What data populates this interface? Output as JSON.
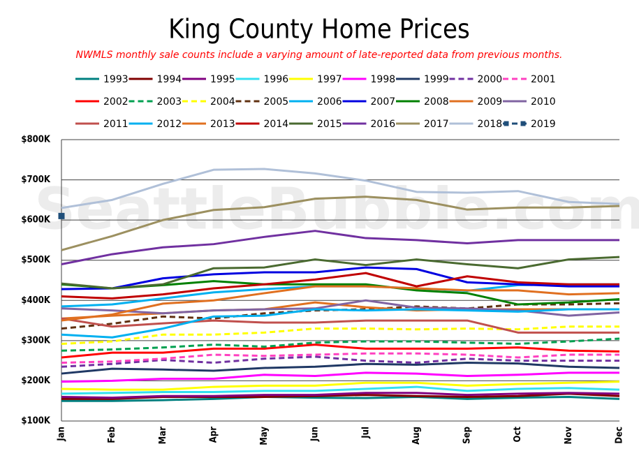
{
  "chart_data": {
    "type": "line",
    "title": "King County Home Prices",
    "subtitle": "NWMLS monthly sale counts include a varying amount of late-reported  data from previous months.",
    "watermark": "SeattleBubble.com",
    "categories": [
      "Jan",
      "Feb",
      "Mar",
      "Apr",
      "May",
      "Jun",
      "Jul",
      "Aug",
      "Sep",
      "Oct",
      "Nov",
      "Dec"
    ],
    "ylim": [
      100000,
      800000
    ],
    "yticks": [
      {
        "value": 100000,
        "label": "$100K"
      },
      {
        "value": 200000,
        "label": "$200K"
      },
      {
        "value": 300000,
        "label": "$300K"
      },
      {
        "value": 400000,
        "label": "$400K"
      },
      {
        "value": 500000,
        "label": "$500K"
      },
      {
        "value": 600000,
        "label": "$600K"
      },
      {
        "value": 700000,
        "label": "$700K"
      },
      {
        "value": 800000,
        "label": "$800K"
      }
    ],
    "grid": true,
    "legend": "top",
    "series": [
      {
        "name": "1993",
        "color": "#008080",
        "values": [
          150000,
          150000,
          152000,
          155000,
          160000,
          158000,
          157000,
          160000,
          155000,
          158000,
          160000,
          155000
        ]
      },
      {
        "name": "1994",
        "color": "#800000",
        "values": [
          155000,
          155000,
          160000,
          160000,
          160000,
          162000,
          165000,
          162000,
          160000,
          162000,
          168000,
          162000
        ]
      },
      {
        "name": "1995",
        "color": "#800080",
        "values": [
          160000,
          158000,
          162000,
          162000,
          165000,
          165000,
          170000,
          170000,
          165000,
          168000,
          170000,
          168000
        ]
      },
      {
        "name": "1996",
        "color": "#33e0f0",
        "values": [
          168000,
          170000,
          172000,
          172000,
          175000,
          175000,
          180000,
          185000,
          175000,
          180000,
          182000,
          178000
        ]
      },
      {
        "name": "1997",
        "color": "#ffff00",
        "values": [
          180000,
          178000,
          178000,
          185000,
          188000,
          188000,
          195000,
          195000,
          188000,
          192000,
          195000,
          198000
        ]
      },
      {
        "name": "1998",
        "color": "#ff00ff",
        "values": [
          198000,
          200000,
          205000,
          205000,
          215000,
          212000,
          220000,
          218000,
          212000,
          215000,
          220000,
          220000
        ]
      },
      {
        "name": "1999",
        "color": "#1f3864",
        "values": [
          218000,
          230000,
          228000,
          225000,
          232000,
          235000,
          242000,
          240000,
          245000,
          243000,
          235000,
          232000
        ]
      },
      {
        "name": "2000",
        "color": "#7030a0",
        "dashed": true,
        "values": [
          235000,
          242000,
          252000,
          245000,
          255000,
          260000,
          250000,
          245000,
          255000,
          250000,
          250000,
          250000
        ]
      },
      {
        "name": "2001",
        "color": "#ff40c0",
        "dashed": true,
        "values": [
          245000,
          248000,
          255000,
          265000,
          262000,
          265000,
          268000,
          268000,
          265000,
          258000,
          265000,
          265000
        ]
      },
      {
        "name": "2002",
        "color": "#ff0000",
        "values": [
          258000,
          270000,
          270000,
          280000,
          280000,
          290000,
          280000,
          280000,
          280000,
          283000,
          275000,
          273000
        ]
      },
      {
        "name": "2003",
        "color": "#00a050",
        "dashed": true,
        "values": [
          275000,
          278000,
          283000,
          290000,
          285000,
          295000,
          298000,
          298000,
          295000,
          292000,
          298000,
          305000
        ]
      },
      {
        "name": "2004",
        "color": "#ffff00",
        "dashed": true,
        "values": [
          292000,
          298000,
          315000,
          315000,
          320000,
          330000,
          330000,
          328000,
          330000,
          328000,
          335000,
          335000
        ]
      },
      {
        "name": "2005",
        "color": "#603010",
        "dashed": true,
        "values": [
          330000,
          342000,
          360000,
          355000,
          368000,
          375000,
          378000,
          385000,
          380000,
          390000,
          390000,
          393000
        ]
      },
      {
        "name": "2006",
        "color": "#00b0f0",
        "values": [
          385000,
          390000,
          405000,
          420000,
          428000,
          435000,
          435000,
          430000,
          424000,
          438000,
          440000,
          440000
        ]
      },
      {
        "name": "2007",
        "color": "#0000e0",
        "values": [
          428000,
          430000,
          455000,
          465000,
          470000,
          470000,
          482000,
          478000,
          445000,
          440000,
          435000,
          435000
        ]
      },
      {
        "name": "2008",
        "color": "#008000",
        "values": [
          440000,
          430000,
          438000,
          448000,
          440000,
          440000,
          440000,
          425000,
          418000,
          390000,
          395000,
          403000
        ]
      },
      {
        "name": "2009",
        "color": "#e07020",
        "values": [
          355000,
          362000,
          368000,
          375000,
          378000,
          395000,
          383000,
          375000,
          378000,
          378000,
          378000,
          378000
        ]
      },
      {
        "name": "2010",
        "color": "#8064a2",
        "values": [
          380000,
          375000,
          368000,
          375000,
          378000,
          380000,
          400000,
          382000,
          380000,
          375000,
          362000,
          370000
        ]
      },
      {
        "name": "2011",
        "color": "#c0504d",
        "values": [
          355000,
          335000,
          343000,
          350000,
          345000,
          345000,
          350000,
          350000,
          350000,
          320000,
          320000,
          320000
        ]
      },
      {
        "name": "2012",
        "color": "#00b0f0",
        "values": [
          315000,
          308000,
          330000,
          360000,
          362000,
          378000,
          375000,
          378000,
          375000,
          372000,
          378000,
          378000
        ]
      },
      {
        "name": "2013",
        "color": "#e07020",
        "values": [
          350000,
          365000,
          392000,
          400000,
          418000,
          435000,
          435000,
          430000,
          425000,
          425000,
          415000,
          418000
        ]
      },
      {
        "name": "2014",
        "color": "#c00000",
        "values": [
          410000,
          405000,
          415000,
          430000,
          440000,
          452000,
          468000,
          435000,
          460000,
          445000,
          440000,
          440000
        ]
      },
      {
        "name": "2015",
        "color": "#4a6a30",
        "values": [
          442000,
          430000,
          440000,
          480000,
          482000,
          502000,
          488000,
          502000,
          490000,
          480000,
          502000,
          508000
        ]
      },
      {
        "name": "2016",
        "color": "#7030a0",
        "values": [
          490000,
          515000,
          532000,
          540000,
          558000,
          573000,
          555000,
          550000,
          542000,
          550000,
          550000,
          550000
        ]
      },
      {
        "name": "2017",
        "color": "#9c9060",
        "values": [
          525000,
          560000,
          600000,
          625000,
          632000,
          653000,
          658000,
          650000,
          626000,
          631000,
          631000,
          635000
        ]
      },
      {
        "name": "2018",
        "color": "#b0c0d8",
        "values": [
          630000,
          650000,
          690000,
          725000,
          727000,
          716000,
          698000,
          670000,
          668000,
          672000,
          645000,
          640000
        ]
      },
      {
        "name": "2019",
        "color": "#1f4e79",
        "dashed": true,
        "marker": "square",
        "values": [
          610000,
          null,
          null,
          null,
          null,
          null,
          null,
          null,
          null,
          null,
          null,
          null
        ]
      }
    ]
  }
}
